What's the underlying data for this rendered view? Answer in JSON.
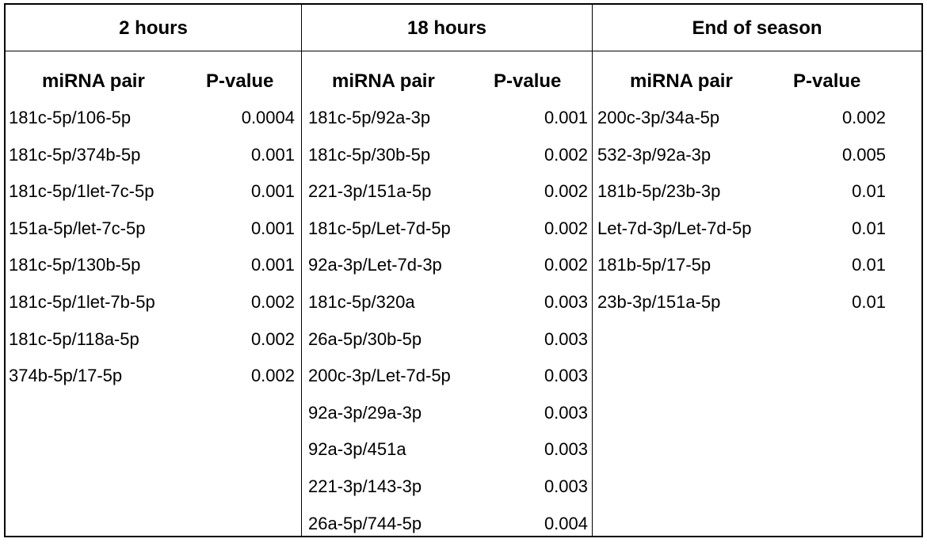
{
  "groups": [
    {
      "title": "2 hours",
      "col_pair": "miRNA pair",
      "col_p": "P-value",
      "rows": [
        {
          "pair": "181c-5p/106-5p",
          "p": "0.0004"
        },
        {
          "pair": "181c-5p/374b-5p",
          "p": "0.001"
        },
        {
          "pair": "181c-5p/1let-7c-5p",
          "p": "0.001"
        },
        {
          "pair": "151a-5p/let-7c-5p",
          "p": "0.001"
        },
        {
          "pair": "181c-5p/130b-5p",
          "p": "0.001"
        },
        {
          "pair": "181c-5p/1let-7b-5p",
          "p": "0.002"
        },
        {
          "pair": "181c-5p/118a-5p",
          "p": "0.002"
        },
        {
          "pair": "374b-5p/17-5p",
          "p": "0.002"
        }
      ]
    },
    {
      "title": "18 hours",
      "col_pair": "miRNA pair",
      "col_p": "P-value",
      "rows": [
        {
          "pair": "181c-5p/92a-3p",
          "p": "0.001"
        },
        {
          "pair": "181c-5p/30b-5p",
          "p": "0.002"
        },
        {
          "pair": "221-3p/151a-5p",
          "p": "0.002"
        },
        {
          "pair": "181c-5p/Let-7d-5p",
          "p": "0.002"
        },
        {
          "pair": "92a-3p/Let-7d-3p",
          "p": "0.002"
        },
        {
          "pair": "181c-5p/320a",
          "p": "0.003"
        },
        {
          "pair": "26a-5p/30b-5p",
          "p": "0.003"
        },
        {
          "pair": "200c-3p/Let-7d-5p",
          "p": "0.003"
        },
        {
          "pair": "92a-3p/29a-3p",
          "p": "0.003"
        },
        {
          "pair": "92a-3p/451a",
          "p": "0.003"
        },
        {
          "pair": "221-3p/143-3p",
          "p": "0.003"
        },
        {
          "pair": "26a-5p/744-5p",
          "p": "0.004"
        }
      ]
    },
    {
      "title": "End of season",
      "col_pair": "miRNA pair",
      "col_p": "P-value",
      "rows": [
        {
          "pair": "200c-3p/34a-5p",
          "p": "0.002"
        },
        {
          "pair": "532-3p/92a-3p",
          "p": "0.005"
        },
        {
          "pair": "181b-5p/23b-3p",
          "p": "0.01"
        },
        {
          "pair": "Let-7d-3p/Let-7d-5p",
          "p": "0.01"
        },
        {
          "pair": "181b-5p/17-5p",
          "p": "0.01"
        },
        {
          "pair": "23b-3p/151a-5p",
          "p": "0.01"
        }
      ]
    }
  ]
}
